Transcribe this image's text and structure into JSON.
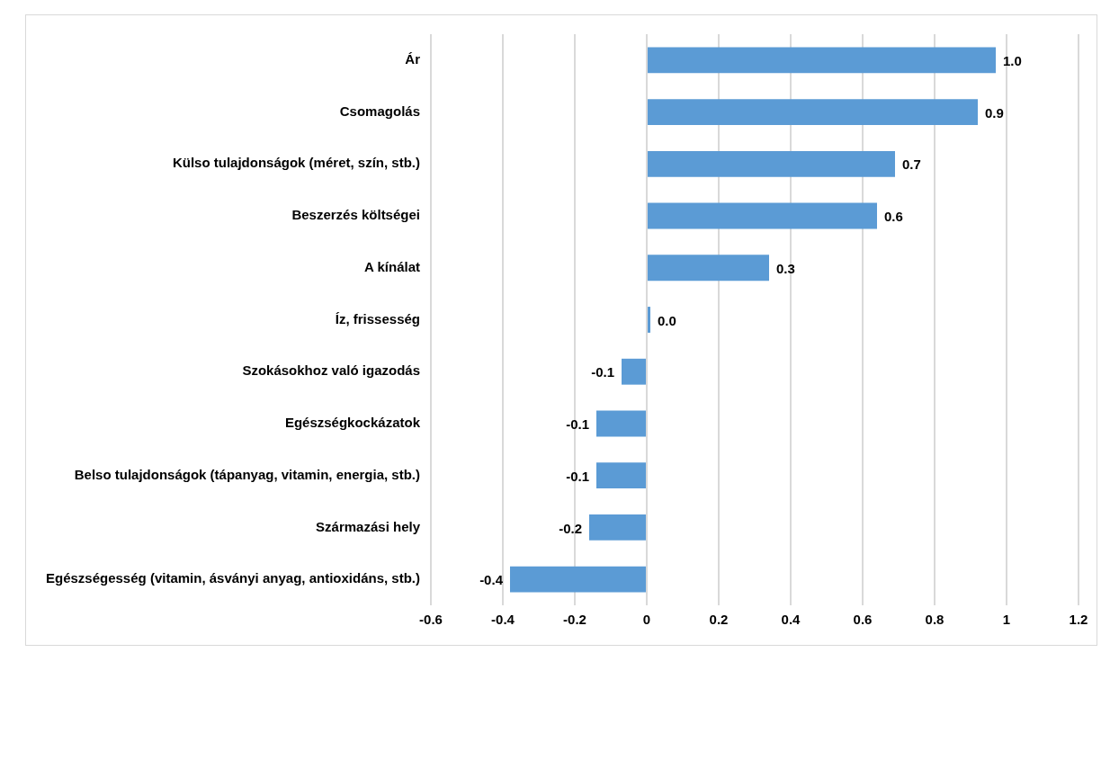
{
  "chart_data": {
    "type": "bar",
    "orientation": "horizontal",
    "categories": [
      "Ár",
      "Csomagolás",
      "Külso tulajdonságok (méret, szín, stb.)",
      "Beszerzés költségei",
      "A kínálat",
      "Íz, frissesség",
      "Szokásokhoz való igazodás",
      "Egészségkockázatok",
      "Belso tulajdonságok (tápanyag, vitamin, energia, stb.)",
      "Származási hely",
      "Egészségesség (vitamin, ásványi anyag, antioxidáns, stb.)"
    ],
    "values": [
      0.97,
      0.92,
      0.69,
      0.64,
      0.34,
      0.01,
      -0.07,
      -0.14,
      -0.14,
      -0.16,
      -0.38
    ],
    "value_labels": [
      "1.0",
      "0.9",
      "0.7",
      "0.6",
      "0.3",
      "0.0",
      "-0.1",
      "-0.1",
      "-0.1",
      "-0.2",
      "-0.4"
    ],
    "color": "#5b9bd5",
    "xlim": [
      -0.6,
      1.2
    ],
    "xticks": [
      -0.6,
      -0.4,
      -0.2,
      0,
      0.2,
      0.4,
      0.6,
      0.8,
      1,
      1.2
    ],
    "grid": "x"
  }
}
